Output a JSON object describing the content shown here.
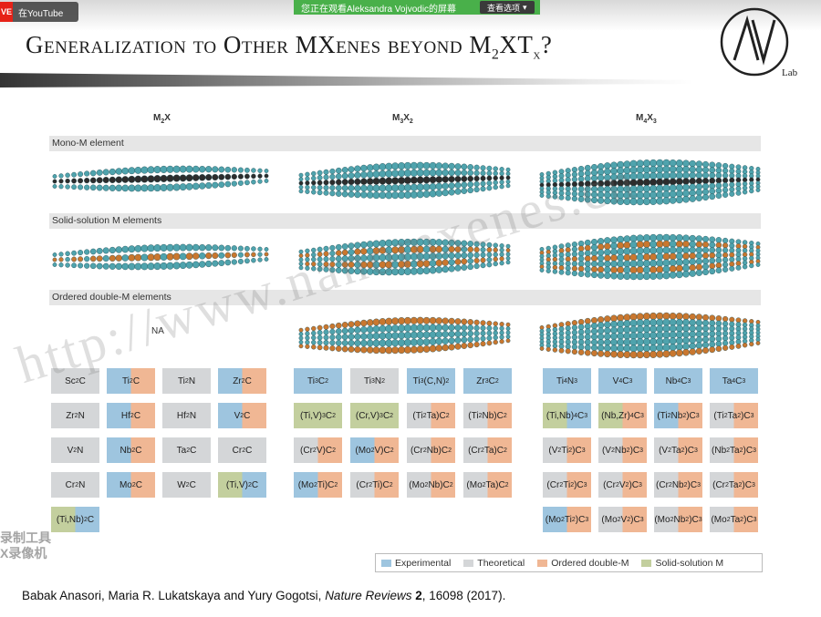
{
  "overlay": {
    "badge_live": "VE",
    "badge_text": "在YouTube",
    "share_text": "您正在观看Aleksandra Vojvodic的屏幕",
    "view_options": "查看选项",
    "view_options_caret": "▾"
  },
  "slide": {
    "title": "Generalization to Other MXenes beyond M",
    "title_sub": "2",
    "title_mid": "XT",
    "title_sub2": "x",
    "title_end": "?",
    "logo_letters": "AV",
    "logo_lab": "Lab"
  },
  "columns": [
    {
      "main": "M",
      "sub1": "2",
      "main2": "X",
      "sub2": ""
    },
    {
      "main": "M",
      "sub1": "3",
      "main2": "X",
      "sub2": "2"
    },
    {
      "main": "M",
      "sub1": "4",
      "main2": "X",
      "sub2": "3"
    }
  ],
  "categories": [
    "Mono-M element",
    "Solid-solution M elements",
    "Ordered double-M elements"
  ],
  "na_label": "NA",
  "tiles_m2x": [
    {
      "m": "Sc",
      "ms": "2",
      "x": "C",
      "xs": ""
    },
    {
      "m": "Ti",
      "ms": "2",
      "x": "C",
      "xs": ""
    },
    {
      "m": "Ti",
      "ms": "2",
      "x": "N",
      "xs": ""
    },
    {
      "m": "Zr",
      "ms": "2",
      "x": "C",
      "xs": ""
    },
    {
      "m": "Zr",
      "ms": "2",
      "x": "N",
      "xs": ""
    },
    {
      "m": "Hf",
      "ms": "2",
      "x": "C",
      "xs": ""
    },
    {
      "m": "Hf",
      "ms": "2",
      "x": "N",
      "xs": ""
    },
    {
      "m": "V",
      "ms": "2",
      "x": "C",
      "xs": ""
    },
    {
      "m": "V",
      "ms": "2",
      "x": "N",
      "xs": ""
    },
    {
      "m": "Nb",
      "ms": "2",
      "x": "C",
      "xs": ""
    },
    {
      "m": "Ta",
      "ms": "2",
      "x": "C",
      "xs": ""
    },
    {
      "m": "Cr",
      "ms": "2",
      "x": "C",
      "xs": ""
    },
    {
      "m": "Cr",
      "ms": "2",
      "x": "N",
      "xs": ""
    },
    {
      "m": "Mo",
      "ms": "2",
      "x": "C",
      "xs": ""
    },
    {
      "m": "W",
      "ms": "2",
      "x": "C",
      "xs": ""
    },
    {
      "m": "(Ti,V)",
      "ms": "2",
      "x": "C",
      "xs": ""
    },
    {
      "m": "(Ti,Nb)",
      "ms": "2",
      "x": "C",
      "xs": ""
    }
  ],
  "tiles_m3x2": [
    {
      "m": "Ti",
      "ms": "3",
      "x": "C",
      "xs": "2"
    },
    {
      "m": "Ti",
      "ms": "3",
      "x": "N",
      "xs": "2"
    },
    {
      "m": "Ti",
      "ms": "3",
      "x": "(C,N)",
      "xs": "2"
    },
    {
      "m": "Zr",
      "ms": "3",
      "x": "C",
      "xs": "2"
    },
    {
      "m": "(Ti,V)",
      "ms": "3",
      "x": "C",
      "xs": "2"
    },
    {
      "m": "(Cr,V)",
      "ms": "3",
      "x": "C",
      "xs": "2"
    },
    {
      "m": "(Ti",
      "ms": "2",
      "x": "Ta)C",
      "xs": "2"
    },
    {
      "m": "(Ti",
      "ms": "2",
      "x": "Nb)C",
      "xs": "2"
    },
    {
      "m": "(Cr",
      "ms": "2",
      "x": "V)C",
      "xs": "2"
    },
    {
      "m": "(Mo",
      "ms": "2",
      "x": "V)C",
      "xs": "2"
    },
    {
      "m": "(Cr",
      "ms": "2",
      "x": "Nb)C",
      "xs": "2"
    },
    {
      "m": "(Cr",
      "ms": "2",
      "x": "Ta)C",
      "xs": "2"
    },
    {
      "m": "(Mo",
      "ms": "2",
      "x": "Ti)C",
      "xs": "2"
    },
    {
      "m": "(Cr",
      "ms": "2",
      "x": "Ti)C",
      "xs": "2"
    },
    {
      "m": "(Mo",
      "ms": "2",
      "x": "Nb)C",
      "xs": "2"
    },
    {
      "m": "(Mo",
      "ms": "2",
      "x": "Ta)C",
      "xs": "2"
    }
  ],
  "tiles_m4x3": [
    {
      "m": "Ti",
      "ms": "4",
      "x": "N",
      "xs": "3"
    },
    {
      "m": "V",
      "ms": "4",
      "x": "C",
      "xs": "3"
    },
    {
      "m": "Nb",
      "ms": "4",
      "x": "C",
      "xs": "3"
    },
    {
      "m": "Ta",
      "ms": "4",
      "x": "C",
      "xs": "3"
    },
    {
      "m": "(Ti,Nb)",
      "ms": "4",
      "x": "C",
      "xs": "3"
    },
    {
      "m": "(Nb,Zr)",
      "ms": "4",
      "x": "C",
      "xs": "3"
    },
    {
      "m": "(Ti",
      "ms": "2",
      "x": "Nb",
      "xs": "2",
      "tail": ")C",
      "ts": "3"
    },
    {
      "m": "(Ti",
      "ms": "2",
      "x": "Ta",
      "xs": "2",
      "tail": ")C",
      "ts": "3"
    },
    {
      "m": "(V",
      "ms": "2",
      "x": "Ti",
      "xs": "2",
      "tail": ")C",
      "ts": "3"
    },
    {
      "m": "(V",
      "ms": "2",
      "x": "Nb",
      "xs": "2",
      "tail": ")C",
      "ts": "3"
    },
    {
      "m": "(V",
      "ms": "2",
      "x": "Ta",
      "xs": "2",
      "tail": ")C",
      "ts": "3"
    },
    {
      "m": "(Nb",
      "ms": "2",
      "x": "Ta",
      "xs": "2",
      "tail": ")C",
      "ts": "3"
    },
    {
      "m": "(Cr",
      "ms": "2",
      "x": "Ti",
      "xs": "2",
      "tail": ")C",
      "ts": "3"
    },
    {
      "m": "(Cr",
      "ms": "2",
      "x": "V",
      "xs": "2",
      "tail": ")C",
      "ts": "3"
    },
    {
      "m": "(Cr",
      "ms": "2",
      "x": "Nb",
      "xs": "2",
      "tail": ")C",
      "ts": "3"
    },
    {
      "m": "(Cr",
      "ms": "2",
      "x": "Ta",
      "xs": "2",
      "tail": ")C",
      "ts": "3"
    },
    {
      "m": "(Mo",
      "ms": "2",
      "x": "Ti",
      "xs": "2",
      "tail": ")C",
      "ts": "3"
    },
    {
      "m": "(Mo",
      "ms": "2",
      "x": "V",
      "xs": "2",
      "tail": ")C",
      "ts": "3"
    },
    {
      "m": "(Mo",
      "ms": "2",
      "x": "Nb",
      "xs": "2",
      "tail": ")C",
      "ts": "3"
    },
    {
      "m": "(Mo",
      "ms": "2",
      "x": "Ta",
      "xs": "2",
      "tail": ")C",
      "ts": "3"
    }
  ],
  "legend": [
    {
      "label": "Experimental",
      "color": "#9ec5df"
    },
    {
      "label": "Theoretical",
      "color": "#d4d6d8"
    },
    {
      "label": "Ordered double-M",
      "color": "#f0b794"
    },
    {
      "label": "Solid-solution M",
      "color": "#c3cf9e"
    }
  ],
  "citation": {
    "authors": "Babak Anasori, Maria R. Lukatskaya and Yury Gogotsi, ",
    "journal": "Nature Reviews",
    "volume": " 2",
    "rest": ", 16098 (2017)."
  },
  "watermark": "http://www.nanomxenes.cn",
  "recorder_watermark": [
    "录制工具",
    "X录像机"
  ],
  "colors": {
    "atom_teal": "#4fa3ad",
    "atom_dark": "#2d2d2d",
    "atom_orange": "#c9772f"
  }
}
